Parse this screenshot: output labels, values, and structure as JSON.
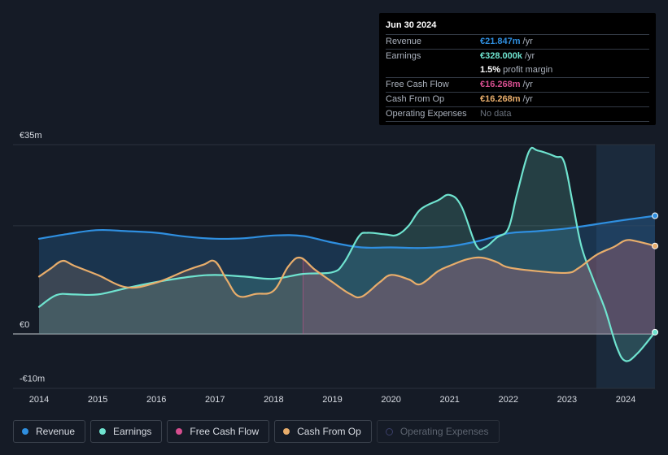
{
  "chart_data": {
    "type": "area",
    "title": "",
    "currency": "€",
    "y_axis": {
      "labels": [
        "€35m",
        "€0",
        "-€10m"
      ],
      "ylim": [
        -10,
        35
      ]
    },
    "x_axis": {
      "labels": [
        "2014",
        "2015",
        "2016",
        "2017",
        "2018",
        "2019",
        "2020",
        "2021",
        "2022",
        "2023",
        "2024"
      ]
    },
    "series": [
      {
        "name": "Revenue",
        "color": "#2f8fe0",
        "points": [
          [
            2014.0,
            17.6
          ],
          [
            2014.5,
            18.5
          ],
          [
            2015.0,
            19.2
          ],
          [
            2015.5,
            19.0
          ],
          [
            2016.0,
            18.7
          ],
          [
            2016.5,
            18.0
          ],
          [
            2017.0,
            17.6
          ],
          [
            2017.5,
            17.7
          ],
          [
            2018.0,
            18.2
          ],
          [
            2018.5,
            18.1
          ],
          [
            2019.0,
            16.9
          ],
          [
            2019.5,
            16.0
          ],
          [
            2020.0,
            16.0
          ],
          [
            2020.5,
            15.9
          ],
          [
            2021.0,
            16.2
          ],
          [
            2021.5,
            17.2
          ],
          [
            2022.0,
            18.6
          ],
          [
            2022.5,
            19.0
          ],
          [
            2023.0,
            19.5
          ],
          [
            2023.5,
            20.3
          ],
          [
            2024.0,
            21.1
          ],
          [
            2024.5,
            21.847
          ]
        ]
      },
      {
        "name": "Earnings",
        "color": "#6fe3cf",
        "points": [
          [
            2014.0,
            5.0
          ],
          [
            2014.3,
            7.2
          ],
          [
            2014.6,
            7.3
          ],
          [
            2015.0,
            7.3
          ],
          [
            2015.5,
            8.5
          ],
          [
            2016.0,
            9.6
          ],
          [
            2016.6,
            10.6
          ],
          [
            2017.0,
            10.9
          ],
          [
            2017.5,
            10.6
          ],
          [
            2018.0,
            10.2
          ],
          [
            2018.5,
            11.1
          ],
          [
            2019.0,
            11.4
          ],
          [
            2019.2,
            13.2
          ],
          [
            2019.45,
            18.0
          ],
          [
            2019.6,
            18.7
          ],
          [
            2019.9,
            18.4
          ],
          [
            2020.1,
            18.3
          ],
          [
            2020.3,
            20.0
          ],
          [
            2020.5,
            23.0
          ],
          [
            2020.8,
            24.7
          ],
          [
            2021.0,
            25.7
          ],
          [
            2021.2,
            23.6
          ],
          [
            2021.45,
            16.4
          ],
          [
            2021.6,
            16.0
          ],
          [
            2021.8,
            17.8
          ],
          [
            2022.0,
            19.5
          ],
          [
            2022.15,
            26.0
          ],
          [
            2022.35,
            33.7
          ],
          [
            2022.5,
            33.9
          ],
          [
            2022.8,
            32.8
          ],
          [
            2022.95,
            31.8
          ],
          [
            2023.1,
            24.0
          ],
          [
            2023.25,
            16.0
          ],
          [
            2023.45,
            10.0
          ],
          [
            2023.65,
            4.5
          ],
          [
            2023.85,
            -2.5
          ],
          [
            2024.0,
            -5.0
          ],
          [
            2024.2,
            -3.6
          ],
          [
            2024.5,
            0.328
          ]
        ]
      },
      {
        "name": "Cash From Op",
        "color": "#e8ad6b",
        "points": [
          [
            2014.0,
            10.6
          ],
          [
            2014.2,
            12.1
          ],
          [
            2014.4,
            13.5
          ],
          [
            2014.6,
            12.6
          ],
          [
            2015.0,
            10.9
          ],
          [
            2015.5,
            8.6
          ],
          [
            2016.0,
            9.5
          ],
          [
            2016.5,
            11.7
          ],
          [
            2016.8,
            12.8
          ],
          [
            2017.0,
            13.4
          ],
          [
            2017.2,
            10.0
          ],
          [
            2017.4,
            7.0
          ],
          [
            2017.7,
            7.4
          ],
          [
            2018.0,
            8.0
          ],
          [
            2018.25,
            12.5
          ],
          [
            2018.45,
            14.1
          ],
          [
            2018.7,
            11.9
          ],
          [
            2019.0,
            9.6
          ],
          [
            2019.3,
            7.4
          ],
          [
            2019.5,
            6.9
          ],
          [
            2019.8,
            9.5
          ],
          [
            2020.0,
            10.9
          ],
          [
            2020.3,
            10.1
          ],
          [
            2020.5,
            9.2
          ],
          [
            2020.8,
            11.6
          ],
          [
            2021.0,
            12.6
          ],
          [
            2021.3,
            13.8
          ],
          [
            2021.55,
            14.1
          ],
          [
            2021.8,
            13.3
          ],
          [
            2022.0,
            12.3
          ],
          [
            2022.5,
            11.6
          ],
          [
            2023.0,
            11.3
          ],
          [
            2023.2,
            12.2
          ],
          [
            2023.5,
            14.6
          ],
          [
            2023.8,
            16.1
          ],
          [
            2024.0,
            17.3
          ],
          [
            2024.2,
            17.1
          ],
          [
            2024.5,
            16.268
          ]
        ]
      },
      {
        "name": "Free Cash Flow",
        "color": "#d64e8f",
        "points": [
          [
            2018.5,
            14.1
          ]
        ]
      }
    ]
  },
  "tooltip": {
    "date": "Jun 30 2024",
    "rows": [
      {
        "label": "Revenue",
        "value": "€21.847m",
        "unit": "/yr",
        "color": "#2f8fe0"
      },
      {
        "label": "Earnings",
        "value": "€328.000k",
        "unit": "/yr",
        "color": "#6fe3cf"
      },
      {
        "label": "",
        "value": "1.5%",
        "unit": "profit margin",
        "color": "#ffffff"
      },
      {
        "label": "Free Cash Flow",
        "value": "€16.268m",
        "unit": "/yr",
        "color": "#d64e8f"
      },
      {
        "label": "Cash From Op",
        "value": "€16.268m",
        "unit": "/yr",
        "color": "#e8ad6b"
      },
      {
        "label": "Operating Expenses",
        "value": "No data",
        "unit": "",
        "color": "#6b727d"
      }
    ]
  },
  "legend": [
    {
      "label": "Revenue",
      "color": "#2f8fe0",
      "enabled": true
    },
    {
      "label": "Earnings",
      "color": "#6fe3cf",
      "enabled": true
    },
    {
      "label": "Free Cash Flow",
      "color": "#d64e8f",
      "enabled": true
    },
    {
      "label": "Cash From Op",
      "color": "#e8ad6b",
      "enabled": true
    },
    {
      "label": "Operating Expenses",
      "color": "#3b3f6a",
      "enabled": false
    }
  ]
}
